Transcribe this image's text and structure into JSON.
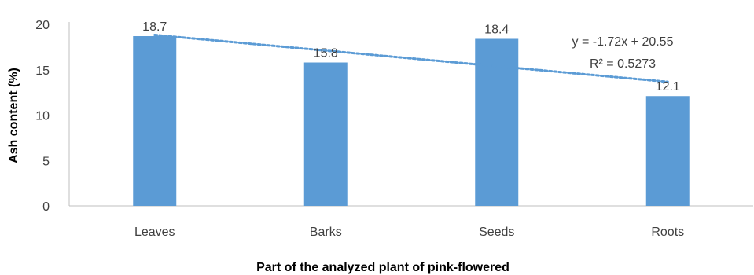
{
  "chart_data": {
    "type": "bar",
    "categories": [
      "Leaves",
      "Barks",
      "Seeds",
      "Roots"
    ],
    "values": [
      18.7,
      15.8,
      18.4,
      12.1
    ],
    "data_labels": [
      "18.7",
      "15.8",
      "18.4",
      "12.1"
    ],
    "ylabel": "Ash content (%)",
    "xlabel": "Part of the analyzed plant of pink-flowered",
    "ylim": [
      0,
      20
    ],
    "yticks": [
      0,
      5,
      10,
      15,
      20
    ],
    "ytick_labels": [
      "0",
      "5",
      "10",
      "15",
      "20"
    ],
    "grid": false,
    "legend": "none",
    "trendline": {
      "type": "linear",
      "slope": -1.72,
      "intercept": 20.55,
      "equation": "y = -1.72x + 20.55",
      "r2_label": "R² = 0.5273"
    },
    "colors": {
      "bar": "#5B9BD5",
      "trendline": "#5B9BD5",
      "axis": "#BFBFBF",
      "tick_text": "#404040",
      "title_text": "#000000"
    }
  }
}
